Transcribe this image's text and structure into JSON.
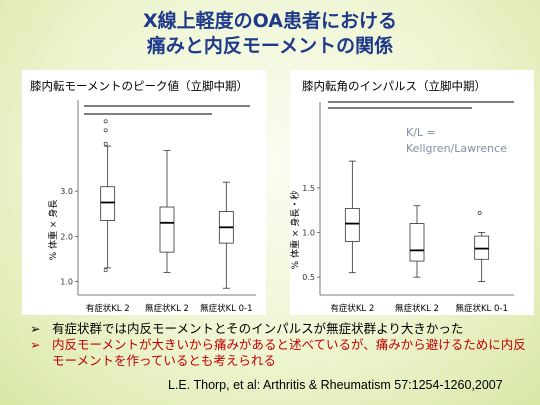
{
  "title": {
    "line1": "X線上軽度のOA患者における",
    "line2": "痛みと内反モーメントの関係"
  },
  "left_chart_title": "膝内転モーメントのピーク値（立脚中期）",
  "right_chart_title": "膝内転角のインパルス（立脚中期）",
  "left_ylabel": "% 体重 × 身長",
  "right_ylabel": "% 体重 × 身長・秒",
  "annotation": {
    "line1": "K/L =",
    "line2": "Kellgren/Lawrence"
  },
  "categories": [
    "有症状KL 2",
    "無症状KL 2",
    "無症状KL 0-1"
  ],
  "bullets": [
    "有症状群では内反モーメントとそのインパルスが無症状群より大きかった",
    "内反モーメントが大きいから痛みがあると述べているが、痛みから避けるために内反モーメントを作っているとも考えられる"
  ],
  "bullet_marker": "➢",
  "citation": "L.E. Thorp, et al: Arthritis & Rheumatism 57:1254-1260,2007",
  "colors": {
    "title": "#1f3a8a",
    "bullet_red": "#c00000",
    "annotation": "#7f8fa6"
  },
  "chart_data": [
    {
      "type": "box",
      "title": "膝内転モーメントのピーク値（立脚中期）",
      "ylabel": "% 体重 × 身長",
      "yticks": [
        "1.0",
        "2.0",
        "3.0"
      ],
      "ytick_values": [
        1.0,
        2.0,
        3.0
      ],
      "ylim": [
        0.7,
        4.8
      ],
      "categories": [
        "有症状KL 2",
        "無症状KL 2",
        "無症状KL 0-1"
      ],
      "boxes": [
        {
          "min": 1.3,
          "q1": 2.35,
          "median": 2.75,
          "q3": 3.1,
          "max": 4.0,
          "outliers": [
            4.55,
            4.35,
            4.05,
            1.25
          ]
        },
        {
          "min": 1.2,
          "q1": 1.65,
          "median": 2.3,
          "q3": 2.65,
          "max": 3.9,
          "outliers": []
        },
        {
          "min": 0.85,
          "q1": 1.85,
          "median": 2.2,
          "q3": 2.55,
          "max": 3.2,
          "outliers": []
        }
      ],
      "significance_bars": 2
    },
    {
      "type": "box",
      "title": "膝内転角のインパルス（立脚中期）",
      "ylabel": "% 体重 × 身長・秒",
      "yticks": [
        "0.5",
        "1.0",
        "1.5"
      ],
      "ytick_values": [
        0.5,
        1.0,
        1.5
      ],
      "ylim": [
        0.3,
        2.35
      ],
      "categories": [
        "有症状KL 2",
        "無症状KL 2",
        "無症状KL 0-1"
      ],
      "boxes": [
        {
          "min": 0.55,
          "q1": 0.9,
          "median": 1.1,
          "q3": 1.27,
          "max": 1.8,
          "outliers": []
        },
        {
          "min": 0.5,
          "q1": 0.68,
          "median": 0.8,
          "q3": 1.1,
          "max": 1.3,
          "outliers": []
        },
        {
          "min": 0.45,
          "q1": 0.7,
          "median": 0.82,
          "q3": 0.96,
          "max": 1.0,
          "outliers": [
            1.22
          ]
        }
      ],
      "significance_bars": 2
    }
  ]
}
